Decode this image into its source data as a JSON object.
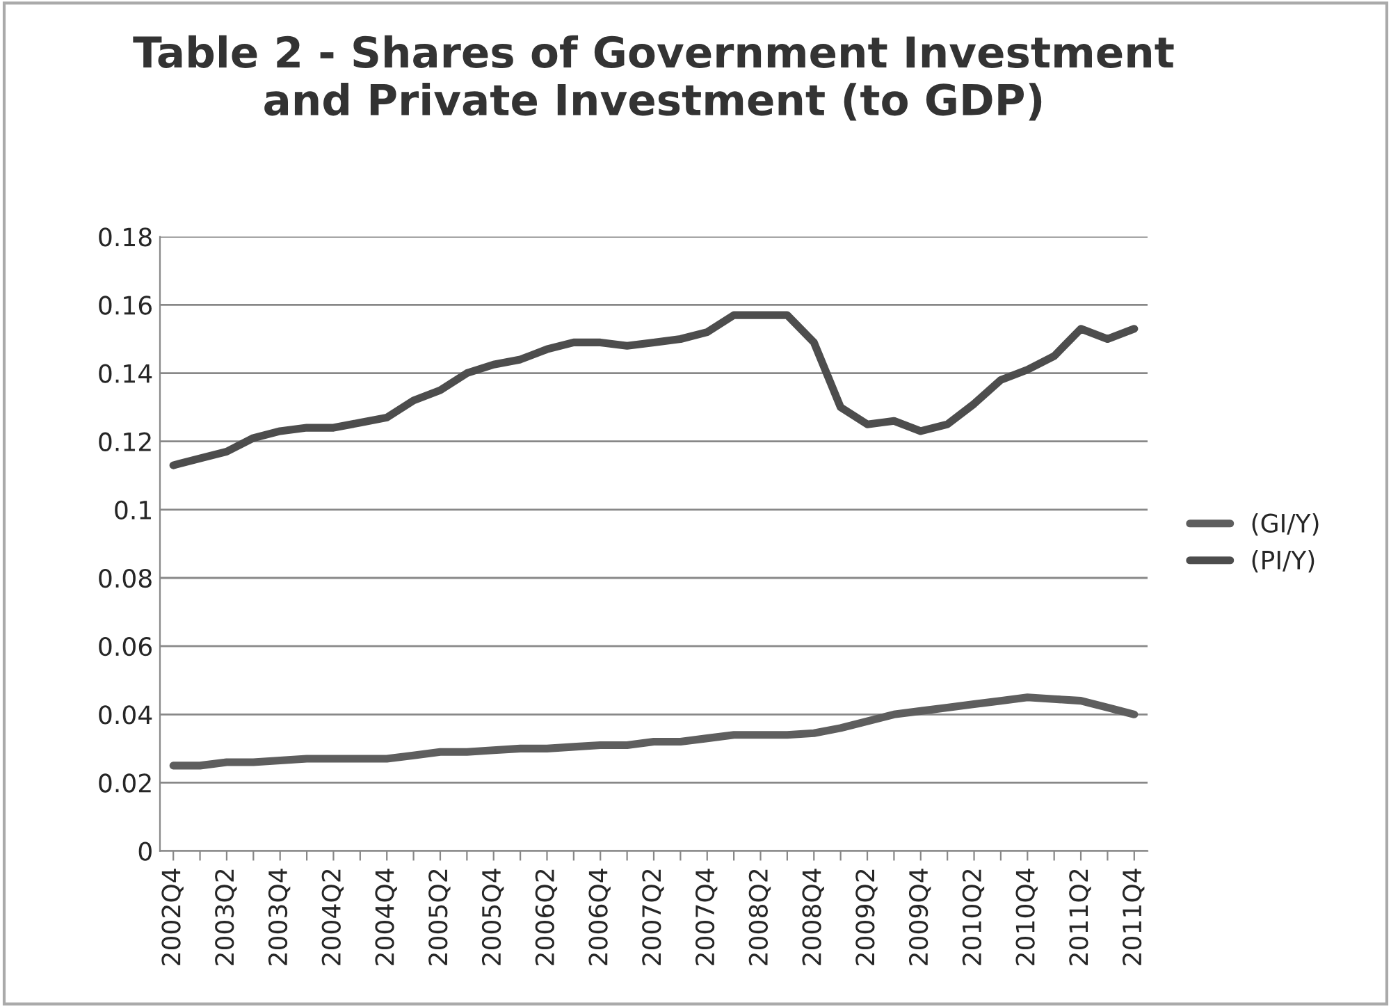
{
  "chart_data": {
    "type": "line",
    "title": "Table 2 - Shares of Government Investment\nand Private Investment (to GDP)",
    "categories": [
      "2002Q4",
      null,
      "2003Q2",
      null,
      "2003Q4",
      null,
      "2004Q2",
      null,
      "2004Q4",
      null,
      "2005Q2",
      null,
      "2005Q4",
      null,
      "2006Q2",
      null,
      "2006Q4",
      null,
      "2007Q2",
      null,
      "2007Q4",
      null,
      "2008Q2",
      null,
      "2008Q4",
      null,
      "2009Q2",
      null,
      "2009Q4",
      null,
      "2010Q2",
      null,
      "2010Q4",
      null,
      "2011Q2",
      null,
      "2011Q4"
    ],
    "series": [
      {
        "name": "(GI/Y)",
        "color": "#5e5e5e",
        "values": [
          0.025,
          0.025,
          0.026,
          0.026,
          0.0265,
          0.027,
          0.027,
          0.027,
          0.027,
          0.028,
          0.029,
          0.029,
          0.0295,
          0.03,
          0.03,
          0.0305,
          0.031,
          0.031,
          0.032,
          0.032,
          0.033,
          0.034,
          0.034,
          0.034,
          0.0345,
          0.036,
          0.038,
          0.04,
          0.041,
          0.042,
          0.043,
          0.044,
          0.045,
          0.0445,
          0.044,
          0.042,
          0.04
        ]
      },
      {
        "name": "(PI/Y)",
        "color": "#4d4d4d",
        "values": [
          0.113,
          0.115,
          0.117,
          0.121,
          0.123,
          0.124,
          0.124,
          0.1255,
          0.127,
          0.132,
          0.135,
          0.14,
          0.1425,
          0.144,
          0.147,
          0.149,
          0.149,
          0.148,
          0.149,
          0.15,
          0.152,
          0.157,
          0.157,
          0.157,
          0.149,
          0.13,
          0.125,
          0.126,
          0.123,
          0.125,
          0.131,
          0.138,
          0.141,
          0.145,
          0.153,
          0.15,
          0.153
        ]
      }
    ],
    "ylim": [
      0,
      0.18
    ],
    "yticks": [
      0,
      0.02,
      0.04,
      0.06,
      0.08,
      0.1,
      0.12,
      0.14,
      0.16,
      0.18
    ],
    "grid": "y",
    "legend": "right",
    "marker": "none",
    "line_style": "solid"
  }
}
